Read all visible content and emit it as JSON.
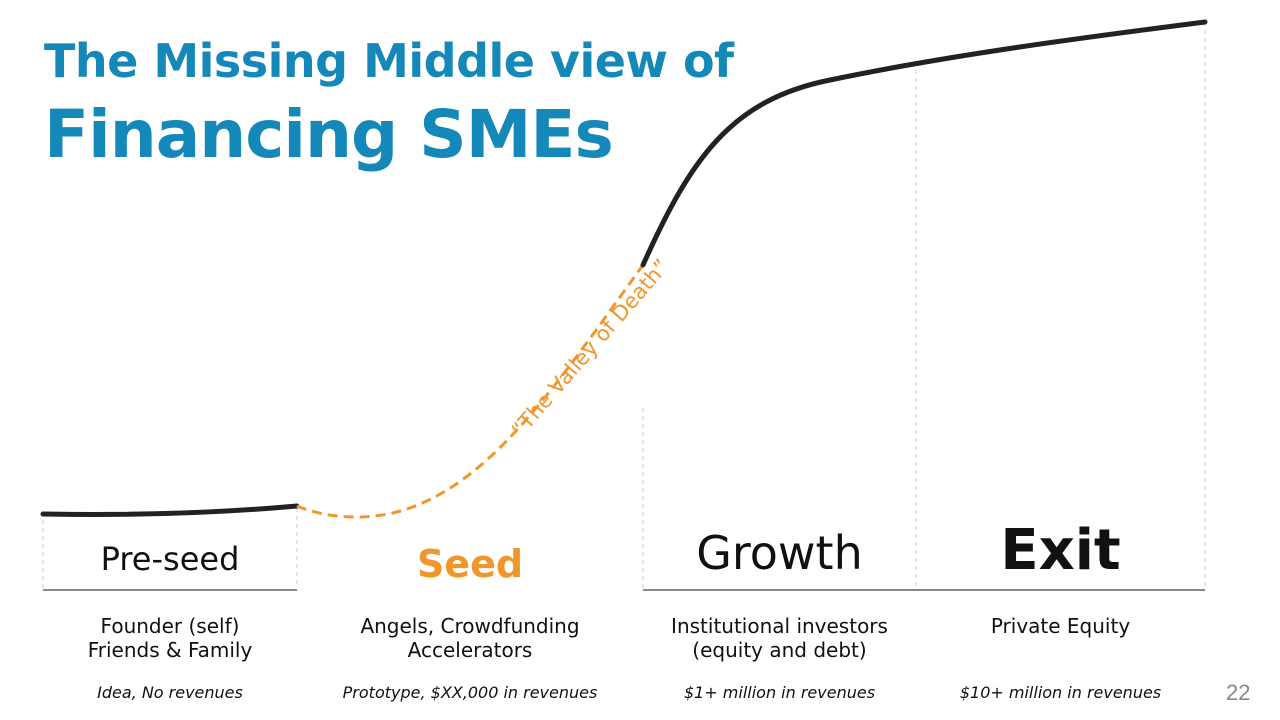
{
  "slide": {
    "title_line1": "The Missing Middle view of",
    "title_line2": "Financing SMEs",
    "page_number": "22",
    "valley_label": "“The Valley of Death”"
  },
  "stages": [
    {
      "name": "Pre-seed",
      "investors_line1": "Founder (self)",
      "investors_line2": "Friends & Family",
      "revenue": "Idea, No revenues"
    },
    {
      "name": "Seed",
      "investors_line1": "Angels, Crowdfunding",
      "investors_line2": "Accelerators",
      "revenue": "Prototype, $XX,000 in revenues"
    },
    {
      "name": "Growth",
      "investors_line1": "Institutional investors",
      "investors_line2": "(equity and debt)",
      "revenue": "$1+ million in revenues"
    },
    {
      "name": "Exit",
      "investors_line1": "Private Equity",
      "investors_line2": "",
      "revenue": "$10+ million in revenues"
    }
  ],
  "colors": {
    "title": "#1488b8",
    "accent": "#f0972b",
    "curve": "#222222"
  }
}
